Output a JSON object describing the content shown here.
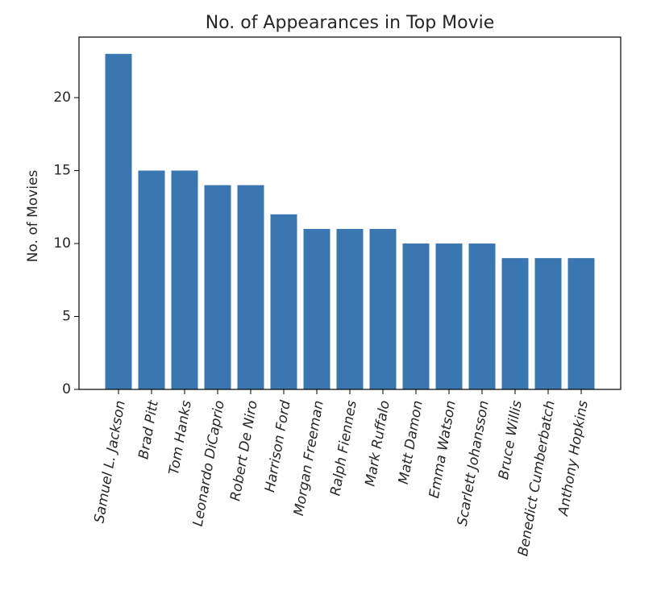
{
  "chart_data": {
    "type": "bar",
    "title": "No. of Appearances in Top Movie",
    "xlabel": "",
    "ylabel": "No. of Movies",
    "categories": [
      "Samuel L. Jackson",
      "Brad Pitt",
      "Tom Hanks",
      "Leonardo DiCaprio",
      "Robert De Niro",
      "Harrison Ford",
      "Morgan Freeman",
      "Ralph Fiennes",
      "Mark Ruffalo",
      "Matt Damon",
      "Emma Watson",
      "Scarlett Johansson",
      "Bruce Willis",
      "Benedict Cumberbatch",
      "Anthony Hopkins"
    ],
    "values": [
      23,
      15,
      15,
      14,
      14,
      12,
      11,
      11,
      11,
      10,
      10,
      10,
      9,
      9,
      9
    ],
    "ylim": [
      0,
      24.15
    ],
    "yticks": [
      0,
      5,
      10,
      15,
      20
    ],
    "grid": false,
    "legend": "none",
    "bar_color": "#3a77b0",
    "xtick_rotation": "80"
  }
}
